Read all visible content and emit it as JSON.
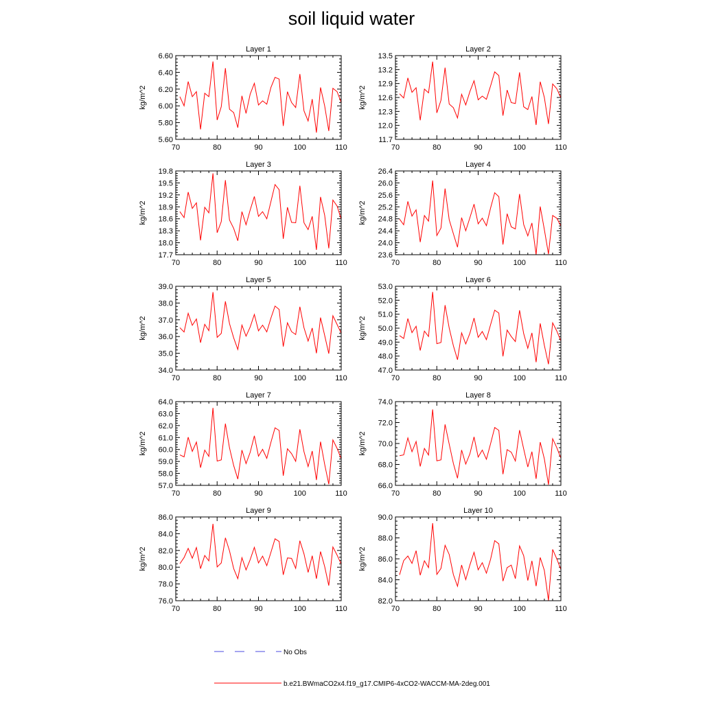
{
  "title": "soil liquid water",
  "legend": {
    "obs_label": "No Obs",
    "model_label": "b.e21.BWmaCO2x4.f19_g17.CMIP6-4xCO2-WACCM-MA-2deg.001",
    "obs_color": "#4a4ae0",
    "model_color": "#ff0000"
  },
  "chart_data": [
    {
      "type": "line",
      "title": "Layer 1",
      "ylabel": "kg/m^2",
      "xlim": [
        70,
        110
      ],
      "ylim": [
        5.6,
        6.6
      ],
      "xticks": [
        "70",
        "80",
        "90",
        "100",
        "110"
      ],
      "yticks": [
        "5.60",
        "5.80",
        "6.00",
        "6.20",
        "6.40",
        "6.60"
      ],
      "series": [
        {
          "x": [
            71,
            72,
            73,
            74,
            75,
            76,
            77,
            78,
            79,
            80,
            81,
            82,
            83,
            84,
            85,
            86,
            87,
            88,
            89,
            90,
            91,
            92,
            93,
            94,
            95,
            96,
            97,
            98,
            99,
            100,
            101,
            102,
            103,
            104,
            105,
            106,
            107,
            108,
            109,
            110
          ],
          "values": [
            6.11,
            6.0,
            6.29,
            6.11,
            6.17,
            5.72,
            6.15,
            6.11,
            6.53,
            5.83,
            5.99,
            6.45,
            5.96,
            5.92,
            5.74,
            6.12,
            5.91,
            6.14,
            6.27,
            6.01,
            6.06,
            6.02,
            6.22,
            6.34,
            6.32,
            5.76,
            6.17,
            6.04,
            5.98,
            6.38,
            5.94,
            5.82,
            6.08,
            5.68,
            6.22,
            6.0,
            5.7,
            6.21,
            6.17,
            6.04
          ]
        }
      ]
    },
    {
      "type": "line",
      "title": "Layer 2",
      "ylabel": "kg/m^2",
      "xlim": [
        70,
        110
      ],
      "ylim": [
        11.7,
        13.5
      ],
      "xticks": [
        "70",
        "80",
        "90",
        "100",
        "110"
      ],
      "yticks": [
        "11.7",
        "12.0",
        "12.3",
        "12.6",
        "12.9",
        "13.2",
        "13.5"
      ],
      "series": [
        {
          "x": [
            71,
            72,
            73,
            74,
            75,
            76,
            77,
            78,
            79,
            80,
            81,
            82,
            83,
            84,
            85,
            86,
            87,
            88,
            89,
            90,
            91,
            92,
            93,
            94,
            95,
            96,
            97,
            98,
            99,
            100,
            101,
            102,
            103,
            104,
            105,
            106,
            107,
            108,
            109,
            110
          ],
          "values": [
            12.68,
            12.59,
            13.02,
            12.71,
            12.81,
            12.11,
            12.78,
            12.7,
            13.37,
            12.27,
            12.54,
            13.24,
            12.46,
            12.38,
            12.16,
            12.67,
            12.44,
            12.73,
            12.96,
            12.55,
            12.63,
            12.56,
            12.85,
            13.15,
            13.07,
            12.21,
            12.76,
            12.49,
            12.47,
            13.14,
            12.4,
            12.34,
            12.62,
            12.01,
            12.94,
            12.6,
            12.03,
            12.89,
            12.79,
            12.59
          ]
        }
      ]
    },
    {
      "type": "line",
      "title": "Layer 3",
      "ylabel": "kg/m^2",
      "xlim": [
        70,
        110
      ],
      "ylim": [
        17.7,
        19.8
      ],
      "xticks": [
        "70",
        "80",
        "90",
        "100",
        "110"
      ],
      "yticks": [
        "17.7",
        "18.0",
        "18.3",
        "18.6",
        "18.9",
        "19.2",
        "19.5",
        "19.8"
      ],
      "series": [
        {
          "x": [
            71,
            72,
            73,
            74,
            75,
            76,
            77,
            78,
            79,
            80,
            81,
            82,
            83,
            84,
            85,
            86,
            87,
            88,
            89,
            90,
            91,
            92,
            93,
            94,
            95,
            96,
            97,
            98,
            99,
            100,
            101,
            102,
            103,
            104,
            105,
            106,
            107,
            108,
            109,
            110
          ],
          "values": [
            18.78,
            18.63,
            19.27,
            18.86,
            19.0,
            18.06,
            18.89,
            18.75,
            19.74,
            18.25,
            18.53,
            19.57,
            18.57,
            18.36,
            18.05,
            18.78,
            18.45,
            18.82,
            19.16,
            18.66,
            18.78,
            18.6,
            19.03,
            19.46,
            19.33,
            18.1,
            18.89,
            18.51,
            18.5,
            19.43,
            18.5,
            18.33,
            18.66,
            17.82,
            19.15,
            18.69,
            17.86,
            19.07,
            18.92,
            18.59
          ]
        }
      ]
    },
    {
      "type": "line",
      "title": "Layer 4",
      "ylabel": "kg/m^2",
      "xlim": [
        70,
        110
      ],
      "ylim": [
        23.6,
        26.4
      ],
      "xticks": [
        "70",
        "80",
        "90",
        "100",
        "110"
      ],
      "yticks": [
        "23.6",
        "24.0",
        "24.4",
        "24.8",
        "25.2",
        "25.6",
        "26.0",
        "26.4"
      ],
      "series": [
        {
          "x": [
            71,
            72,
            73,
            74,
            75,
            76,
            77,
            78,
            79,
            80,
            81,
            82,
            83,
            84,
            85,
            86,
            87,
            88,
            89,
            90,
            91,
            92,
            93,
            94,
            95,
            96,
            97,
            98,
            99,
            100,
            101,
            102,
            103,
            104,
            105,
            106,
            107,
            108,
            109,
            110
          ],
          "values": [
            24.79,
            24.6,
            25.38,
            24.89,
            25.1,
            24.02,
            24.91,
            24.72,
            26.08,
            24.24,
            24.49,
            25.81,
            24.77,
            24.3,
            23.85,
            24.84,
            24.4,
            24.84,
            25.29,
            24.63,
            24.82,
            24.57,
            25.16,
            25.67,
            25.54,
            23.94,
            24.97,
            24.53,
            24.46,
            25.63,
            24.61,
            24.23,
            24.66,
            23.6,
            25.21,
            24.44,
            23.62,
            24.91,
            24.82,
            24.56
          ]
        }
      ]
    },
    {
      "type": "line",
      "title": "Layer 5",
      "ylabel": "kg/m^2",
      "xlim": [
        70,
        110
      ],
      "ylim": [
        34.0,
        39.0
      ],
      "xticks": [
        "70",
        "80",
        "90",
        "100",
        "110"
      ],
      "yticks": [
        "34.0",
        "35.0",
        "36.0",
        "37.0",
        "38.0",
        "39.0"
      ],
      "series": [
        {
          "x": [
            71,
            72,
            73,
            74,
            75,
            76,
            77,
            78,
            79,
            80,
            81,
            82,
            83,
            84,
            85,
            86,
            87,
            88,
            89,
            90,
            91,
            92,
            93,
            94,
            95,
            96,
            97,
            98,
            99,
            100,
            101,
            102,
            103,
            104,
            105,
            106,
            107,
            108,
            109,
            110
          ],
          "values": [
            36.53,
            36.27,
            37.39,
            36.67,
            37.05,
            35.63,
            36.73,
            36.35,
            38.65,
            35.95,
            36.19,
            38.1,
            36.77,
            35.92,
            35.23,
            36.68,
            36.02,
            36.57,
            37.32,
            36.34,
            36.68,
            36.28,
            37.1,
            37.82,
            37.62,
            35.4,
            36.82,
            36.29,
            36.12,
            37.78,
            36.52,
            35.73,
            36.51,
            35.0,
            37.13,
            36.07,
            34.98,
            37.24,
            36.72,
            36.2
          ]
        }
      ]
    },
    {
      "type": "line",
      "title": "Layer 6",
      "ylabel": "kg/m^2",
      "xlim": [
        70,
        110
      ],
      "ylim": [
        47.0,
        53.0
      ],
      "xticks": [
        "70",
        "80",
        "90",
        "100",
        "110"
      ],
      "yticks": [
        "47.0",
        "48.0",
        "49.0",
        "50.0",
        "51.0",
        "52.0",
        "53.0"
      ],
      "series": [
        {
          "x": [
            71,
            72,
            73,
            74,
            75,
            76,
            77,
            78,
            79,
            80,
            81,
            82,
            83,
            84,
            85,
            86,
            87,
            88,
            89,
            90,
            91,
            92,
            93,
            94,
            95,
            96,
            97,
            98,
            99,
            100,
            101,
            102,
            103,
            104,
            105,
            106,
            107,
            108,
            109,
            110
          ],
          "values": [
            49.47,
            49.26,
            50.69,
            49.68,
            50.14,
            48.4,
            49.79,
            49.4,
            52.59,
            48.89,
            48.97,
            51.65,
            50.01,
            48.74,
            47.74,
            49.66,
            48.87,
            49.64,
            50.73,
            49.34,
            49.76,
            49.18,
            50.25,
            51.29,
            51.08,
            47.98,
            49.86,
            49.4,
            49.04,
            51.28,
            49.61,
            48.56,
            49.66,
            47.56,
            50.34,
            48.77,
            47.42,
            50.38,
            49.8,
            49.08
          ]
        }
      ]
    },
    {
      "type": "line",
      "title": "Layer 7",
      "ylabel": "kg/m^2",
      "xlim": [
        70,
        110
      ],
      "ylim": [
        57.0,
        64.0
      ],
      "xticks": [
        "70",
        "80",
        "90",
        "100",
        "110"
      ],
      "yticks": [
        "57.0",
        "58.0",
        "59.0",
        "60.0",
        "61.0",
        "62.0",
        "63.0",
        "64.0"
      ],
      "series": [
        {
          "x": [
            71,
            72,
            73,
            74,
            75,
            76,
            77,
            78,
            79,
            80,
            81,
            82,
            83,
            84,
            85,
            86,
            87,
            88,
            89,
            90,
            91,
            92,
            93,
            94,
            95,
            96,
            97,
            98,
            99,
            100,
            101,
            102,
            103,
            104,
            105,
            106,
            107,
            108,
            109,
            110
          ],
          "values": [
            59.55,
            59.38,
            61.03,
            59.84,
            60.62,
            58.48,
            59.95,
            59.42,
            63.47,
            59.03,
            59.13,
            62.16,
            60.13,
            58.65,
            57.53,
            59.95,
            58.82,
            59.76,
            61.14,
            59.44,
            60.01,
            59.26,
            60.59,
            61.81,
            61.59,
            57.81,
            60.06,
            59.65,
            59.01,
            61.69,
            59.81,
            58.57,
            59.87,
            57.45,
            60.65,
            58.76,
            57.1,
            60.8,
            60.09,
            59.22
          ]
        }
      ]
    },
    {
      "type": "line",
      "title": "Layer 8",
      "ylabel": "kg/m^2",
      "xlim": [
        70,
        110
      ],
      "ylim": [
        66.0,
        74.0
      ],
      "xticks": [
        "70",
        "80",
        "90",
        "100",
        "110"
      ],
      "yticks": [
        "66.0",
        "68.0",
        "70.0",
        "72.0",
        "74.0"
      ],
      "series": [
        {
          "x": [
            71,
            72,
            73,
            74,
            75,
            76,
            77,
            78,
            79,
            80,
            81,
            82,
            83,
            84,
            85,
            86,
            87,
            88,
            89,
            90,
            91,
            92,
            93,
            94,
            95,
            96,
            97,
            98,
            99,
            100,
            101,
            102,
            103,
            104,
            105,
            106,
            107,
            108,
            109,
            110
          ],
          "values": [
            68.83,
            68.91,
            70.53,
            69.21,
            70.19,
            67.81,
            69.53,
            68.9,
            73.25,
            68.35,
            68.44,
            71.82,
            69.95,
            68.09,
            66.68,
            69.38,
            68.03,
            69.02,
            70.63,
            68.71,
            69.37,
            68.49,
            69.99,
            71.53,
            71.25,
            67.07,
            69.41,
            69.17,
            68.33,
            71.27,
            69.48,
            67.76,
            69.22,
            66.62,
            70.13,
            68.53,
            66.07,
            70.45,
            69.61,
            68.6
          ]
        }
      ]
    },
    {
      "type": "line",
      "title": "Layer 9",
      "ylabel": "kg/m^2",
      "xlim": [
        70,
        110
      ],
      "ylim": [
        76.0,
        86.0
      ],
      "xticks": [
        "70",
        "80",
        "90",
        "100",
        "110"
      ],
      "yticks": [
        "76.0",
        "78.0",
        "80.0",
        "82.0",
        "84.0",
        "86.0"
      ],
      "series": [
        {
          "x": [
            71,
            72,
            73,
            74,
            75,
            76,
            77,
            78,
            79,
            80,
            81,
            82,
            83,
            84,
            85,
            86,
            87,
            88,
            89,
            90,
            91,
            92,
            93,
            94,
            95,
            96,
            97,
            98,
            99,
            100,
            101,
            102,
            103,
            104,
            105,
            106,
            107,
            108,
            109,
            110
          ],
          "values": [
            80.42,
            81.15,
            82.25,
            81.07,
            82.35,
            79.83,
            81.4,
            80.75,
            85.18,
            80.03,
            80.51,
            83.51,
            81.95,
            79.83,
            78.63,
            81.14,
            79.67,
            80.9,
            82.38,
            80.51,
            81.32,
            80.18,
            81.77,
            83.39,
            83.07,
            79.09,
            81.11,
            81.05,
            79.86,
            83.16,
            81.59,
            79.38,
            81.37,
            78.63,
            81.87,
            80.09,
            77.8,
            82.42,
            81.44,
            80.37
          ]
        }
      ]
    },
    {
      "type": "line",
      "title": "Layer 10",
      "ylabel": "kg/m^2",
      "xlim": [
        70,
        110
      ],
      "ylim": [
        82.0,
        90.0
      ],
      "xticks": [
        "70",
        "80",
        "90",
        "100",
        "110"
      ],
      "yticks": [
        "82.0",
        "84.0",
        "86.0",
        "88.0",
        "90.0"
      ],
      "series": [
        {
          "x": [
            71,
            72,
            73,
            74,
            75,
            76,
            77,
            78,
            79,
            80,
            81,
            82,
            83,
            84,
            85,
            86,
            87,
            88,
            89,
            90,
            91,
            92,
            93,
            94,
            95,
            96,
            97,
            98,
            99,
            100,
            101,
            102,
            103,
            104,
            105,
            106,
            107,
            108,
            109,
            110
          ],
          "values": [
            84.47,
            85.83,
            86.27,
            85.57,
            86.78,
            84.43,
            85.81,
            85.16,
            89.4,
            84.51,
            85.08,
            87.29,
            86.42,
            84.49,
            83.38,
            85.41,
            84.01,
            85.42,
            86.62,
            84.95,
            85.63,
            84.63,
            85.96,
            87.74,
            87.43,
            83.87,
            85.16,
            85.4,
            84.11,
            87.23,
            86.3,
            83.93,
            85.81,
            83.39,
            86.13,
            84.89,
            82.03,
            86.9,
            86.0,
            84.97
          ]
        }
      ]
    }
  ]
}
